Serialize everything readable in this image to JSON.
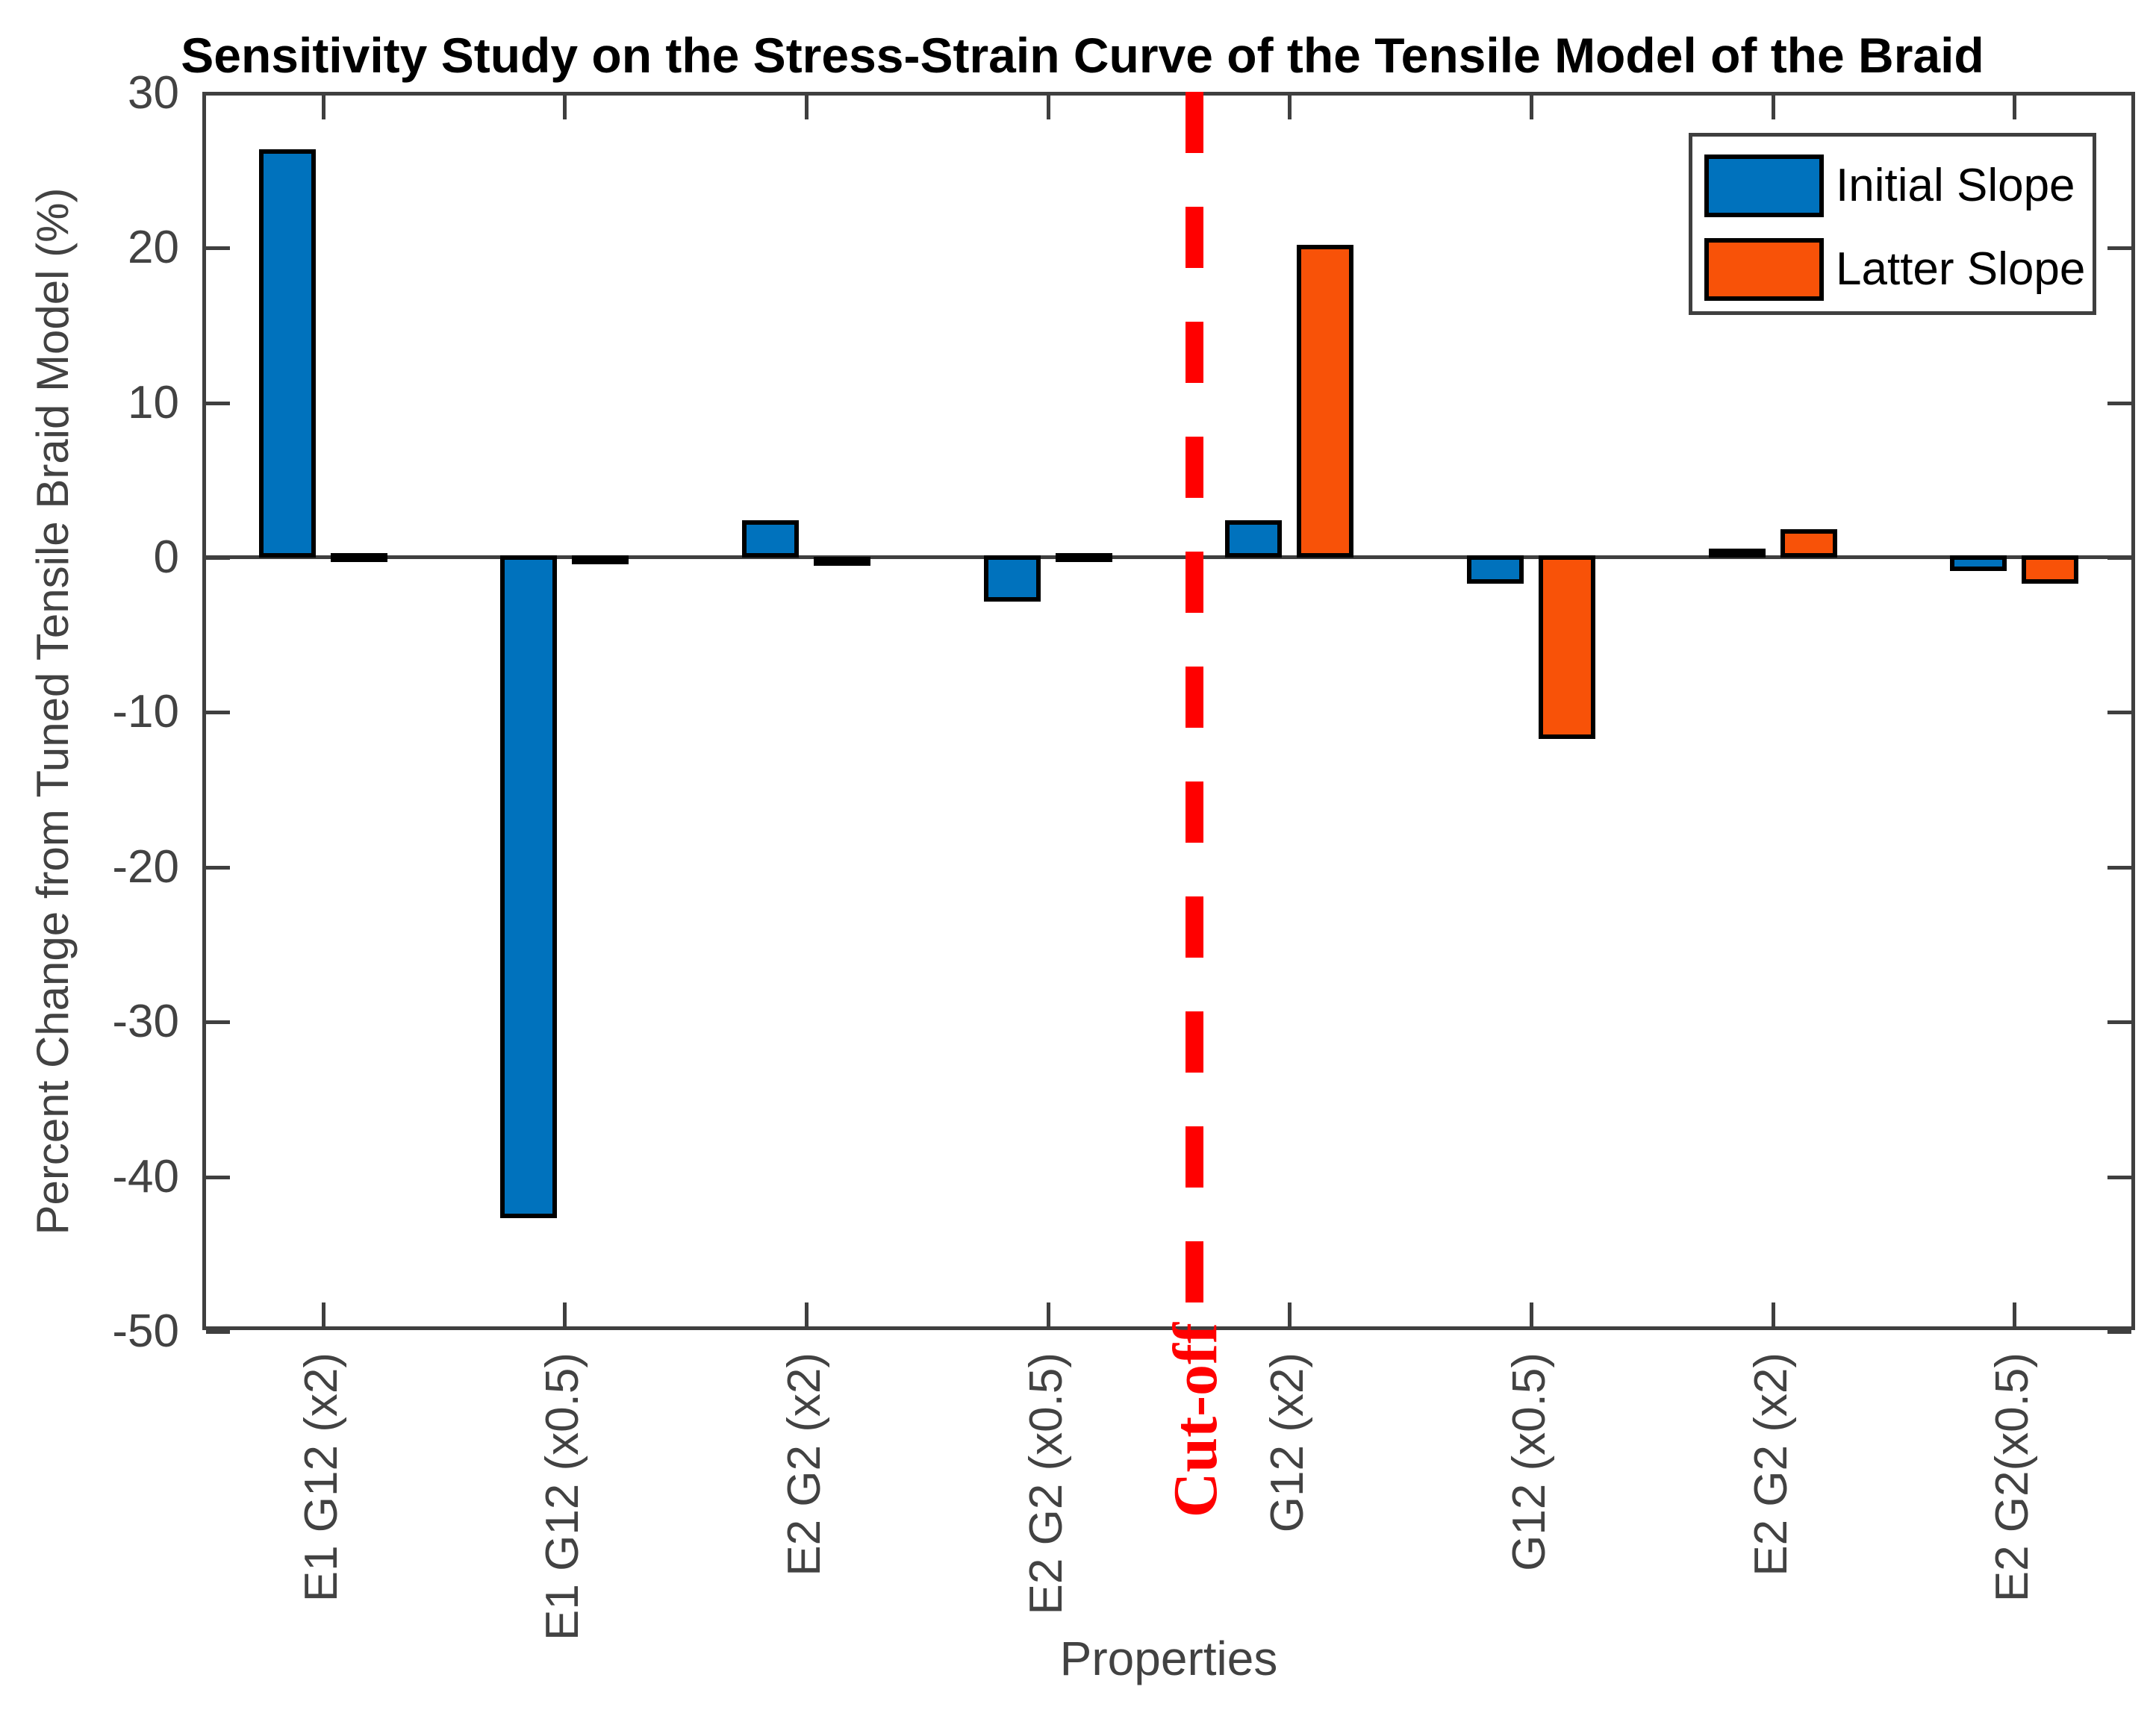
{
  "title": "Sensitivity Study on the Stress-Strain Curve of the Tensile Model of the Braid",
  "chart_data": {
    "type": "bar",
    "title": "Sensitivity Study on the Stress-Strain Curve of the Tensile Model of the Braid",
    "xlabel": "Properties",
    "ylabel": "Percent Change from Tuned Tensile Braid Model (%)",
    "ylim": [
      -50,
      30
    ],
    "yticks": [
      30,
      20,
      10,
      0,
      -10,
      -20,
      -30,
      -40,
      -50
    ],
    "ytick_labels": [
      "30",
      "20",
      "10",
      "0",
      "-10",
      "-20",
      "-30",
      "-40",
      "-50"
    ],
    "grid": false,
    "legend_position": "top-right",
    "categories": [
      "E1 G12 (x2)",
      "E1 G12 (x0.5)",
      "E2 G2 (x2)",
      "E2 G2 (x0.5)",
      "G12 (x2)",
      "G12 (x0.5)",
      "E2 G2 (x2)",
      "E2 G2(x0.5)"
    ],
    "series": [
      {
        "name": "Initial Slope",
        "color": "#0072BD",
        "values": [
          26.4,
          -42.8,
          2.4,
          -3.0,
          2.4,
          -1.85,
          0.6,
          -1.0
        ]
      },
      {
        "name": "Latter Slope",
        "color": "#F85208",
        "values": [
          0.28,
          -0.55,
          0.06,
          0.28,
          20.2,
          -11.85,
          1.85,
          -1.85
        ]
      }
    ],
    "annotation": {
      "label": "Cut-off",
      "color": "#FF0000",
      "style": "vertical-dashed-line",
      "between_categories": [
        "E2 G2 (x0.5)",
        "G12 (x2)"
      ]
    }
  },
  "colors": {
    "axis": "#3f3f3f",
    "tick_text": "#424242",
    "bar_outline": "#000000",
    "cutoff_red": "#FF0000",
    "background": "#ffffff"
  }
}
